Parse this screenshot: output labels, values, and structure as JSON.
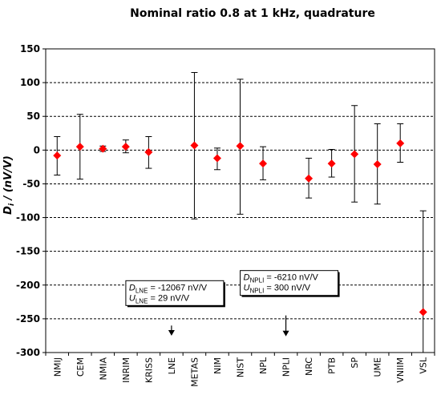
{
  "chart_data": {
    "type": "scatter",
    "title": "Nominal ratio 0.8 at 1 kHz, quadrature",
    "ylabel_main": "D",
    "ylabel_sub": "i",
    "ylabel_rest": " / (nV/V)",
    "xlabel": "",
    "ylim": [
      -300,
      150
    ],
    "yticks": [
      150,
      100,
      50,
      0,
      -50,
      -100,
      -150,
      -200,
      -250,
      -300
    ],
    "grid": "horizontal-dashed",
    "colors": {
      "marker": "#ff0000",
      "errorbar": "#000000",
      "grid": "#000000"
    },
    "categories": [
      "NMIJ",
      "CEM",
      "NMIA",
      "INRIM",
      "KRISS",
      "LNE",
      "METAS",
      "NIM",
      "NIST",
      "NPL",
      "NPLI",
      "NRC",
      "PTB",
      "SP",
      "UME",
      "VNIIM",
      "VSL"
    ],
    "points": [
      {
        "label": "NMIJ",
        "value": -8,
        "low": -37,
        "high": 20
      },
      {
        "label": "CEM",
        "value": 5,
        "low": -43,
        "high": 53
      },
      {
        "label": "NMIA",
        "value": 2,
        "low": -2,
        "high": 6
      },
      {
        "label": "INRIM",
        "value": 5,
        "low": -4,
        "high": 15
      },
      {
        "label": "KRISS",
        "value": -3,
        "low": -27,
        "high": 20
      },
      {
        "label": "LNE",
        "value": null,
        "low": null,
        "high": null
      },
      {
        "label": "METAS",
        "value": 7,
        "low": -102,
        "high": 115
      },
      {
        "label": "NIM",
        "value": -12,
        "low": -29,
        "high": 3
      },
      {
        "label": "NIST",
        "value": 6,
        "low": -95,
        "high": 105
      },
      {
        "label": "NPL",
        "value": -20,
        "low": -44,
        "high": 5
      },
      {
        "label": "NPLI",
        "value": null,
        "low": null,
        "high": null
      },
      {
        "label": "NRC",
        "value": -42,
        "low": -71,
        "high": -12
      },
      {
        "label": "PTB",
        "value": -20,
        "low": -40,
        "high": 1
      },
      {
        "label": "SP",
        "value": -6,
        "low": -77,
        "high": 66
      },
      {
        "label": "UME",
        "value": -21,
        "low": -80,
        "high": 39
      },
      {
        "label": "VNIIM",
        "value": 10,
        "low": -18,
        "high": 39
      },
      {
        "label": "VSL",
        "value": -240,
        "low": -300,
        "high": -90
      }
    ],
    "annotations": [
      {
        "target": "LNE",
        "arrow_from": -260,
        "arrow_to": -275,
        "line1_sym": "D",
        "line1_sub": "LNE",
        "line1_val": " = -12067 nV/V",
        "line2_sym": "U",
        "line2_sub": "LNE",
        "line2_val": " = 29 nV/V"
      },
      {
        "target": "NPLI",
        "arrow_from": -245,
        "arrow_to": -276,
        "line1_sym": "D",
        "line1_sub": "NPLI",
        "line1_val": " = -6210 nV/V",
        "line2_sym": "U",
        "line2_sub": "NPLI",
        "line2_val": " = 300 nV/V"
      }
    ]
  }
}
